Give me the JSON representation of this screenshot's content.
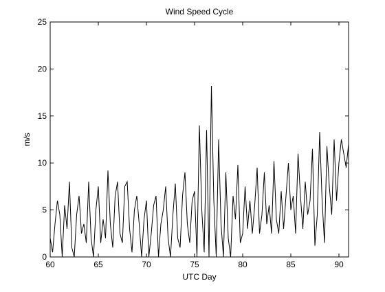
{
  "chart_data": {
    "type": "line",
    "title": "Wind Speed Cycle",
    "xlabel": "UTC Day",
    "ylabel": "m/s",
    "xlim": [
      60,
      91
    ],
    "ylim": [
      0,
      25
    ],
    "xticks": [
      60,
      65,
      70,
      75,
      80,
      85,
      90
    ],
    "yticks": [
      0,
      5,
      10,
      15,
      20,
      25
    ],
    "grid": false,
    "series": [
      {
        "line_color": "#000000",
        "x": [
          60.0,
          60.25,
          60.5,
          60.75,
          61.0,
          61.25,
          61.5,
          61.75,
          62.0,
          62.25,
          62.5,
          62.75,
          63.0,
          63.25,
          63.5,
          63.75,
          64.0,
          64.25,
          64.5,
          64.75,
          65.0,
          65.25,
          65.5,
          65.75,
          66.0,
          66.25,
          66.5,
          66.75,
          67.0,
          67.25,
          67.5,
          67.75,
          68.0,
          68.25,
          68.5,
          68.75,
          69.0,
          69.25,
          69.5,
          69.75,
          70.0,
          70.25,
          70.5,
          70.75,
          71.0,
          71.25,
          71.5,
          71.75,
          72.0,
          72.25,
          72.5,
          72.75,
          73.0,
          73.25,
          73.5,
          73.75,
          74.0,
          74.25,
          74.5,
          74.75,
          75.0,
          75.25,
          75.5,
          75.75,
          76.0,
          76.25,
          76.5,
          76.75,
          77.0,
          77.25,
          77.5,
          77.75,
          78.0,
          78.25,
          78.5,
          78.75,
          79.0,
          79.25,
          79.5,
          79.75,
          80.0,
          80.25,
          80.5,
          80.75,
          81.0,
          81.25,
          81.5,
          81.75,
          82.0,
          82.25,
          82.5,
          82.75,
          83.0,
          83.25,
          83.5,
          83.75,
          84.0,
          84.25,
          84.5,
          84.75,
          85.0,
          85.25,
          85.5,
          85.75,
          86.0,
          86.25,
          86.5,
          86.75,
          87.0,
          87.25,
          87.5,
          87.75,
          88.0,
          88.25,
          88.5,
          88.75,
          89.0,
          89.25,
          89.5,
          89.75,
          90.0,
          90.25,
          90.5,
          90.75,
          91.0
        ],
        "y": [
          2.0,
          0.5,
          3.5,
          6.0,
          4.5,
          0.0,
          5.5,
          3.0,
          8.0,
          1.0,
          0.0,
          4.5,
          6.5,
          2.5,
          3.5,
          1.5,
          8.0,
          2.0,
          0.0,
          5.0,
          7.5,
          1.5,
          4.0,
          2.0,
          9.2,
          3.5,
          1.0,
          6.5,
          8.0,
          2.5,
          1.5,
          7.5,
          8.0,
          3.0,
          0.5,
          5.0,
          6.5,
          3.5,
          0.0,
          4.0,
          6.0,
          0.0,
          2.5,
          5.5,
          6.5,
          0.0,
          3.5,
          5.0,
          7.5,
          2.0,
          0.0,
          4.5,
          7.8,
          2.0,
          1.0,
          6.5,
          9.0,
          3.5,
          1.5,
          6.0,
          7.0,
          0.0,
          14.0,
          5.0,
          0.5,
          13.5,
          0.0,
          18.2,
          6.0,
          0.0,
          12.5,
          3.5,
          0.0,
          9.0,
          2.0,
          0.0,
          6.5,
          4.0,
          9.8,
          1.5,
          2.5,
          7.5,
          3.0,
          6.0,
          2.5,
          5.5,
          9.5,
          2.5,
          4.5,
          9.0,
          3.5,
          5.5,
          2.5,
          10.2,
          4.0,
          2.5,
          7.0,
          3.0,
          6.5,
          10.0,
          5.0,
          6.5,
          2.5,
          11.0,
          6.5,
          3.0,
          8.0,
          4.5,
          6.0,
          11.5,
          1.2,
          4.5,
          13.3,
          6.0,
          1.5,
          11.8,
          7.5,
          4.5,
          12.5,
          6.0,
          10.0,
          12.5,
          11.0,
          9.5,
          12.0
        ]
      }
    ]
  }
}
